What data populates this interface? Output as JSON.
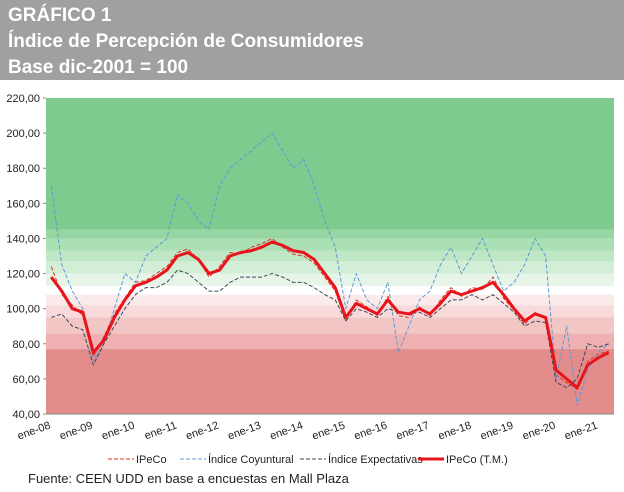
{
  "chart_data": {
    "type": "line",
    "title_lines": [
      "GRÁFICO 1",
      "Índice de Percepción de Consumidores",
      "Base dic-2001 = 100"
    ],
    "source": "Fuente: CEEN UDD en base a encuestas en Mall Plaza",
    "categories": [
      "ene-08",
      null,
      null,
      null,
      "ene-09",
      null,
      null,
      null,
      "ene-10",
      null,
      null,
      null,
      "ene-11",
      null,
      null,
      null,
      "ene-12",
      null,
      null,
      null,
      "ene-13",
      null,
      null,
      null,
      "ene-14",
      null,
      null,
      null,
      "ene-15",
      null,
      null,
      null,
      "ene-16",
      null,
      null,
      null,
      "ene-17",
      null,
      null,
      null,
      "ene-18",
      null,
      null,
      null,
      "ene-19",
      null,
      null,
      null,
      "ene-20",
      null,
      null,
      null,
      "ene-21",
      null
    ],
    "ylim": [
      40,
      220
    ],
    "yticks": [
      {
        "value": 40,
        "label": "40,00"
      },
      {
        "value": 60,
        "label": "60,00"
      },
      {
        "value": 80,
        "label": "80,00"
      },
      {
        "value": 100,
        "label": "100,00"
      },
      {
        "value": 120,
        "label": "120,00"
      },
      {
        "value": 140,
        "label": "140,00"
      },
      {
        "value": 160,
        "label": "160,00"
      },
      {
        "value": 180,
        "label": "180,00"
      },
      {
        "value": 200,
        "label": "200,00"
      },
      {
        "value": 220,
        "label": "220,00"
      }
    ],
    "bands": [
      {
        "from": 40,
        "to": 77,
        "color": "#e38c8c"
      },
      {
        "from": 77,
        "to": 86,
        "color": "#eeb0b0"
      },
      {
        "from": 86,
        "to": 95,
        "color": "#f3c6c6"
      },
      {
        "from": 95,
        "to": 102,
        "color": "#f8dada"
      },
      {
        "from": 102,
        "to": 108,
        "color": "#fbeaea"
      },
      {
        "from": 108,
        "to": 113,
        "color": "#ffffff"
      },
      {
        "from": 113,
        "to": 120,
        "color": "#e6f5e8"
      },
      {
        "from": 120,
        "to": 127,
        "color": "#d2eed6"
      },
      {
        "from": 127,
        "to": 133,
        "color": "#bfe6c5"
      },
      {
        "from": 133,
        "to": 140,
        "color": "#abdfb4"
      },
      {
        "from": 140,
        "to": 145,
        "color": "#97d6a2"
      },
      {
        "from": 145,
        "to": 220,
        "color": "#7fca8f"
      }
    ],
    "series": [
      {
        "name": "IPeCo",
        "color": "#e03020",
        "dash": "4,2",
        "width": 1,
        "values": [
          124,
          108,
          102,
          96,
          73,
          84,
          97,
          106,
          115,
          116,
          120,
          124,
          132,
          134,
          128,
          118,
          124,
          132,
          131,
          135,
          137,
          140,
          135,
          131,
          130,
          126,
          118,
          110,
          93,
          105,
          101,
          96,
          107,
          96,
          95,
          101,
          96,
          105,
          112,
          107,
          112,
          111,
          118,
          106,
          99,
          91,
          98,
          94,
          62,
          58,
          54,
          70,
          74,
          76
        ]
      },
      {
        "name": "Índice Coyuntural",
        "color": "#5b9bd5",
        "dash": "4,2",
        "width": 1,
        "values": [
          170,
          125,
          110,
          100,
          70,
          80,
          100,
          120,
          115,
          130,
          135,
          140,
          165,
          160,
          150,
          145,
          170,
          180,
          185,
          190,
          195,
          200,
          190,
          180,
          185,
          170,
          150,
          135,
          100,
          120,
          105,
          100,
          115,
          75,
          90,
          105,
          110,
          125,
          135,
          120,
          130,
          140,
          125,
          110,
          115,
          125,
          140,
          130,
          60,
          90,
          45,
          65,
          75,
          80
        ]
      },
      {
        "name": "Índice Expectativas",
        "color": "#404858",
        "dash": "4,2",
        "width": 1,
        "values": [
          95,
          97,
          90,
          88,
          68,
          80,
          90,
          100,
          108,
          112,
          112,
          115,
          122,
          120,
          115,
          110,
          110,
          115,
          118,
          118,
          118,
          120,
          118,
          115,
          115,
          112,
          108,
          105,
          93,
          100,
          98,
          95,
          100,
          98,
          97,
          98,
          95,
          100,
          105,
          105,
          108,
          105,
          108,
          103,
          98,
          90,
          93,
          92,
          58,
          55,
          60,
          80,
          78,
          80
        ]
      },
      {
        "name": "IPeCo (T.M.)",
        "color": "#e8141c",
        "dash": "",
        "width": 3,
        "values": [
          118,
          110,
          100,
          98,
          75,
          82,
          95,
          105,
          113,
          115,
          118,
          122,
          130,
          132,
          128,
          120,
          122,
          130,
          132,
          133,
          135,
          138,
          136,
          133,
          132,
          128,
          120,
          112,
          95,
          103,
          100,
          97,
          105,
          98,
          97,
          100,
          97,
          103,
          110,
          108,
          110,
          112,
          115,
          108,
          100,
          93,
          97,
          95,
          65,
          60,
          55,
          68,
          72,
          75
        ]
      }
    ]
  }
}
